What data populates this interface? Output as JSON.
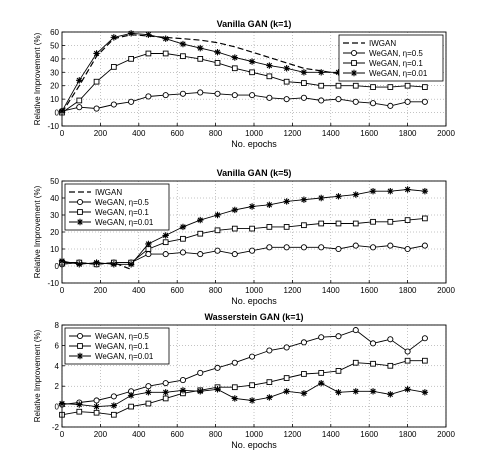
{
  "chart_data": [
    {
      "type": "line",
      "title": "Vanilla GAN (k=1)",
      "xlabel": "No. epochs",
      "ylabel": "Relative Improvement (%)",
      "xlim": [
        0,
        2000
      ],
      "ylim": [
        -10,
        60
      ],
      "xticks": [
        "0",
        "200",
        "400",
        "600",
        "800",
        "1000",
        "1200",
        "1400",
        "1600",
        "1800",
        "2000"
      ],
      "yticks": [
        "-10",
        "0",
        "10",
        "20",
        "30",
        "40",
        "50",
        "60"
      ],
      "grid": true,
      "legend_position": "top-right",
      "series": [
        {
          "name": "IWGAN",
          "marker": "none",
          "dash": true,
          "x": [
            0,
            90,
            180,
            270,
            360,
            450,
            540,
            630,
            720,
            810,
            900,
            990,
            1080,
            1170,
            1260,
            1350,
            1440,
            1530,
            1620,
            1710,
            1800,
            1890
          ],
          "y": [
            0,
            20,
            42,
            55,
            58,
            57,
            56,
            55,
            54,
            52,
            49,
            45,
            41,
            37,
            33,
            31,
            29,
            28,
            29,
            30,
            31,
            31
          ]
        },
        {
          "name": "WeGAN, η=0.5",
          "marker": "circle",
          "x": [
            0,
            90,
            180,
            270,
            360,
            450,
            540,
            630,
            720,
            810,
            900,
            990,
            1080,
            1170,
            1260,
            1350,
            1440,
            1530,
            1620,
            1710,
            1800,
            1890
          ],
          "y": [
            1,
            4,
            3,
            6,
            8,
            12,
            13,
            14,
            15,
            14,
            13,
            13,
            11,
            10,
            11,
            9,
            10,
            8,
            7,
            5,
            8,
            8
          ]
        },
        {
          "name": "WeGAN, η=0.1",
          "marker": "square",
          "x": [
            0,
            90,
            180,
            270,
            360,
            450,
            540,
            630,
            720,
            810,
            900,
            990,
            1080,
            1170,
            1260,
            1350,
            1440,
            1530,
            1620,
            1710,
            1800,
            1890
          ],
          "y": [
            0,
            9,
            23,
            34,
            40,
            44,
            44,
            42,
            40,
            37,
            33,
            30,
            27,
            23,
            22,
            20,
            20,
            20,
            19,
            19,
            20,
            19
          ]
        },
        {
          "name": "WeGAN, η=0.01",
          "marker": "star",
          "x": [
            0,
            90,
            180,
            270,
            360,
            450,
            540,
            630,
            720,
            810,
            900,
            990,
            1080,
            1170,
            1260,
            1350,
            1440,
            1530,
            1620,
            1710,
            1800,
            1890
          ],
          "y": [
            1,
            24,
            44,
            56,
            59,
            58,
            55,
            51,
            48,
            45,
            41,
            38,
            35,
            33,
            30,
            30,
            30,
            29,
            29,
            30,
            32,
            31
          ]
        }
      ]
    },
    {
      "type": "line",
      "title": "Vanilla GAN (k=5)",
      "xlabel": "No. epochs",
      "ylabel": "Relative Improvement (%)",
      "xlim": [
        0,
        2000
      ],
      "ylim": [
        -10,
        50
      ],
      "xticks": [
        "0",
        "200",
        "400",
        "600",
        "800",
        "1000",
        "1200",
        "1400",
        "1600",
        "1800",
        "2000"
      ],
      "yticks": [
        "-10",
        "0",
        "10",
        "20",
        "30",
        "40",
        "50"
      ],
      "grid": true,
      "legend_position": "top-left",
      "series": [
        {
          "name": "IWGAN",
          "marker": "none",
          "dash": true,
          "x": [
            0,
            90,
            180,
            270,
            360
          ],
          "y": [
            2,
            2,
            1,
            2,
            -2
          ]
        },
        {
          "name": "WeGAN, η=0.5",
          "marker": "circle",
          "x": [
            0,
            90,
            180,
            270,
            360,
            450,
            540,
            630,
            720,
            810,
            900,
            990,
            1080,
            1170,
            1260,
            1350,
            1440,
            1530,
            1620,
            1710,
            1800,
            1890
          ],
          "y": [
            1,
            2,
            1,
            2,
            2,
            7,
            7,
            8,
            7,
            9,
            7,
            9,
            11,
            11,
            11,
            11,
            10,
            12,
            11,
            12,
            10,
            12
          ]
        },
        {
          "name": "WeGAN, η=0.1",
          "marker": "square",
          "x": [
            0,
            90,
            180,
            270,
            360,
            450,
            540,
            630,
            720,
            810,
            900,
            990,
            1080,
            1170,
            1260,
            1350,
            1440,
            1530,
            1620,
            1710,
            1800,
            1890
          ],
          "y": [
            2,
            2,
            1,
            2,
            2,
            10,
            14,
            16,
            19,
            21,
            22,
            22,
            23,
            23,
            24,
            25,
            25,
            25,
            26,
            26,
            27,
            28
          ]
        },
        {
          "name": "WeGAN, η=0.01",
          "marker": "star",
          "x": [
            0,
            90,
            180,
            270,
            360,
            450,
            540,
            630,
            720,
            810,
            900,
            990,
            1080,
            1170,
            1260,
            1350,
            1440,
            1530,
            1620,
            1710,
            1800,
            1890
          ],
          "y": [
            3,
            1,
            2,
            1,
            1,
            13,
            18,
            23,
            27,
            30,
            33,
            35,
            36,
            38,
            39,
            40,
            41,
            42,
            44,
            44,
            45,
            44
          ]
        }
      ]
    },
    {
      "type": "line",
      "title": "Wasserstein GAN (k=1)",
      "xlabel": "No. epochs",
      "ylabel": "Relative Improvement (%)",
      "xlim": [
        0,
        2000
      ],
      "ylim": [
        -2,
        8
      ],
      "xticks": [
        "0",
        "200",
        "400",
        "600",
        "800",
        "1000",
        "1200",
        "1400",
        "1600",
        "1800",
        "2000"
      ],
      "yticks": [
        "-2",
        "0",
        "2",
        "4",
        "6",
        "8"
      ],
      "grid": true,
      "legend_position": "top-left",
      "series": [
        {
          "name": "WeGAN, η=0.5",
          "marker": "circle",
          "x": [
            0,
            90,
            180,
            270,
            360,
            450,
            540,
            630,
            720,
            810,
            900,
            990,
            1080,
            1170,
            1260,
            1350,
            1440,
            1530,
            1620,
            1710,
            1800,
            1890
          ],
          "y": [
            0.2,
            0.4,
            0.6,
            1.0,
            1.5,
            2.0,
            2.3,
            2.6,
            3.3,
            3.8,
            4.3,
            4.9,
            5.5,
            5.8,
            6.3,
            6.8,
            6.9,
            7.5,
            6.2,
            6.6,
            5.4,
            6.7
          ]
        },
        {
          "name": "WeGAN, η=0.1",
          "marker": "square",
          "x": [
            0,
            90,
            180,
            270,
            360,
            450,
            540,
            630,
            720,
            810,
            900,
            990,
            1080,
            1170,
            1260,
            1350,
            1440,
            1530,
            1620,
            1710,
            1800,
            1890
          ],
          "y": [
            -0.8,
            -0.5,
            -0.6,
            -0.8,
            0.0,
            0.3,
            0.8,
            1.3,
            1.6,
            1.9,
            1.9,
            2.1,
            2.4,
            2.8,
            3.2,
            3.3,
            3.5,
            4.3,
            4.2,
            4.0,
            4.5,
            4.5
          ]
        },
        {
          "name": "WeGAN, η=0.01",
          "marker": "star",
          "x": [
            0,
            90,
            180,
            270,
            360,
            450,
            540,
            630,
            720,
            810,
            900,
            990,
            1080,
            1170,
            1260,
            1350,
            1440,
            1530,
            1620,
            1710,
            1800,
            1890
          ],
          "y": [
            0.3,
            0.2,
            0.0,
            0.1,
            1.1,
            1.4,
            1.4,
            1.6,
            1.5,
            1.7,
            0.8,
            0.6,
            0.9,
            1.5,
            1.3,
            2.3,
            1.4,
            1.5,
            1.5,
            1.2,
            1.7,
            1.4
          ]
        }
      ]
    }
  ]
}
